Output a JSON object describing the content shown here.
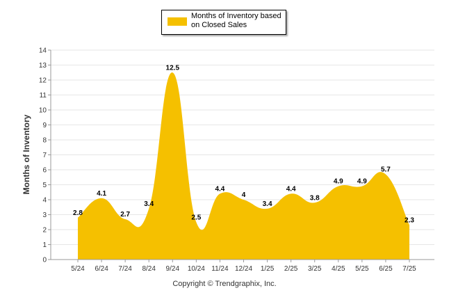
{
  "chart_data": {
    "type": "area",
    "categories": [
      "5/24",
      "6/24",
      "7/24",
      "8/24",
      "9/24",
      "10/24",
      "11/24",
      "12/24",
      "1/25",
      "2/25",
      "3/25",
      "4/25",
      "5/25",
      "6/25",
      "7/25"
    ],
    "series": [
      {
        "name": "Months of Inventory based on Closed Sales",
        "values": [
          2.8,
          4.1,
          2.7,
          3.4,
          12.5,
          2.5,
          4.4,
          4,
          3.4,
          4.4,
          3.8,
          4.9,
          4.9,
          5.7,
          2.3
        ]
      }
    ],
    "data_labels": [
      "2.8",
      "4.1",
      "2.7",
      "3.4",
      "12.5",
      "2.5",
      "4.4",
      "4",
      "3.4",
      "4.4",
      "3.8",
      "4.9",
      "4.9",
      "5.7",
      "2.3"
    ],
    "ylabel": "Months of Inventory",
    "xlabel": "",
    "ylim": [
      0,
      14
    ],
    "yticks": [
      "0",
      "1",
      "2",
      "3",
      "4",
      "5",
      "6",
      "7",
      "8",
      "9",
      "10",
      "11",
      "12",
      "13",
      "14"
    ],
    "grid": true,
    "legend_position": "top-center",
    "color": "#F5C000"
  },
  "legend": {
    "line1": "Months of Inventory based",
    "line2": "on Closed Sales"
  },
  "footer": {
    "copyright": "Copyright © Trendgraphix, Inc."
  }
}
